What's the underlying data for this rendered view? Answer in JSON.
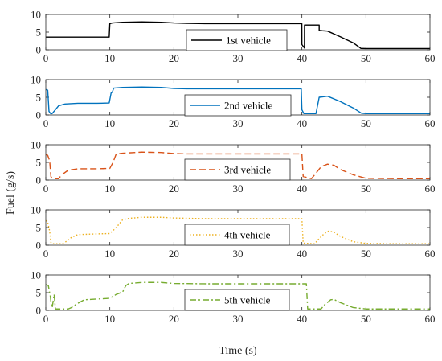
{
  "chart_data": {
    "type": "line",
    "ylabel": "Fuel (g/s)",
    "xlabel": "Time (s)",
    "xlim": [
      0,
      60
    ],
    "xticks": [
      0,
      10,
      20,
      30,
      40,
      50,
      60
    ],
    "grid": false,
    "legend_position": "inside",
    "panels": [
      {
        "name": "1st vehicle",
        "color": "#000000",
        "linestyle": "solid",
        "ylim": [
          0,
          10
        ],
        "yticks": [
          0,
          5,
          10
        ],
        "x": [
          0,
          9.9,
          10.0,
          10.4,
          12,
          15,
          18,
          20,
          22,
          25,
          30,
          35,
          39.99,
          40.0,
          40.4,
          40.41,
          42.7,
          42.7,
          43.2,
          44,
          46,
          48,
          49.2,
          50,
          55,
          60
        ],
        "y": [
          3.6,
          3.6,
          7.4,
          7.6,
          7.8,
          7.9,
          7.8,
          7.6,
          7.5,
          7.4,
          7.4,
          7.4,
          7.4,
          1.5,
          0.5,
          7.0,
          7.0,
          5.5,
          5.4,
          5.3,
          3.7,
          2.0,
          0.4,
          0.35,
          0.35,
          0.35
        ]
      },
      {
        "name": "2nd vehicle",
        "color": "#0072BD",
        "linestyle": "solid",
        "ylim": [
          0,
          10
        ],
        "yticks": [
          0,
          5,
          10
        ],
        "x": [
          0,
          0.3,
          0.5,
          0.8,
          1.0,
          1.5,
          2,
          3,
          5,
          8,
          9.9,
          10.2,
          10.4,
          10.6,
          12,
          15,
          18,
          20,
          22,
          25,
          30,
          35,
          39.9,
          40.0,
          40.3,
          42.2,
          42.7,
          44,
          46,
          48,
          49.3,
          50,
          55,
          60
        ],
        "y": [
          7.2,
          7.0,
          1.0,
          0.3,
          0.4,
          1.5,
          2.6,
          3.1,
          3.3,
          3.3,
          3.4,
          6.2,
          6.5,
          7.6,
          7.8,
          7.9,
          7.8,
          7.5,
          7.4,
          7.4,
          7.4,
          7.4,
          7.4,
          1.5,
          0.4,
          0.4,
          5.0,
          5.3,
          3.8,
          2.0,
          0.5,
          0.4,
          0.4,
          0.4
        ]
      },
      {
        "name": "3rd vehicle",
        "color": "#D95319",
        "linestyle": "dashed",
        "ylim": [
          0,
          10
        ],
        "yticks": [
          0,
          5,
          10
        ],
        "x": [
          0,
          0.3,
          0.6,
          0.8,
          1.0,
          2.0,
          2.5,
          3.5,
          5,
          8,
          10,
          10.5,
          11,
          12,
          15,
          18,
          20,
          22,
          25,
          30,
          35,
          40.0,
          40.2,
          41.5,
          42.0,
          43,
          44,
          45,
          46,
          48,
          50,
          55,
          60
        ],
        "y": [
          7.2,
          7.0,
          5.5,
          1.0,
          0.4,
          0.4,
          1.5,
          2.8,
          3.2,
          3.2,
          3.3,
          5.0,
          7.4,
          7.6,
          7.9,
          7.8,
          7.5,
          7.4,
          7.4,
          7.4,
          7.4,
          7.4,
          1.0,
          0.4,
          1.5,
          3.8,
          4.5,
          4.2,
          3.0,
          1.5,
          0.5,
          0.4,
          0.4
        ]
      },
      {
        "name": "4th vehicle",
        "color": "#EDB120",
        "linestyle": "dotted",
        "ylim": [
          0,
          10
        ],
        "yticks": [
          0,
          5,
          10
        ],
        "x": [
          0,
          0.3,
          0.6,
          0.8,
          1.0,
          2.5,
          3,
          4,
          5,
          8,
          10,
          11,
          12,
          13,
          15,
          18,
          20,
          25,
          30,
          35,
          40.0,
          40.2,
          42.0,
          42.5,
          43.5,
          44.2,
          45,
          46,
          48,
          50,
          55,
          60
        ],
        "y": [
          7.0,
          6.5,
          4.0,
          0.8,
          0.4,
          0.4,
          0.8,
          2.2,
          3.0,
          3.2,
          3.3,
          5.0,
          7.2,
          7.6,
          7.9,
          7.9,
          7.7,
          7.5,
          7.5,
          7.5,
          7.5,
          0.6,
          0.4,
          1.5,
          3.3,
          4.0,
          3.7,
          2.5,
          1.0,
          0.5,
          0.4,
          0.4
        ]
      },
      {
        "name": "5th vehicle",
        "color": "#77AC30",
        "linestyle": "dashdot",
        "ylim": [
          0,
          10
        ],
        "yticks": [
          0,
          5,
          10
        ],
        "x": [
          0,
          0.4,
          0.7,
          0.9,
          1.0,
          1.3,
          1.5,
          3.5,
          4.0,
          5,
          6,
          8,
          10,
          11,
          12,
          12.5,
          13,
          15,
          18,
          20,
          25,
          30,
          35,
          40.7,
          40.9,
          43,
          43.5,
          44.5,
          45,
          46,
          48,
          50,
          55,
          60
        ],
        "y": [
          7.3,
          7.0,
          4.0,
          1.0,
          0.8,
          4.5,
          0.4,
          0.4,
          0.8,
          2.0,
          3.0,
          3.2,
          3.4,
          4.5,
          5.2,
          7.0,
          7.6,
          7.9,
          7.9,
          7.6,
          7.5,
          7.5,
          7.5,
          7.5,
          0.4,
          0.4,
          1.5,
          3.0,
          3.1,
          2.2,
          0.8,
          0.4,
          0.4,
          0.4
        ]
      }
    ]
  }
}
